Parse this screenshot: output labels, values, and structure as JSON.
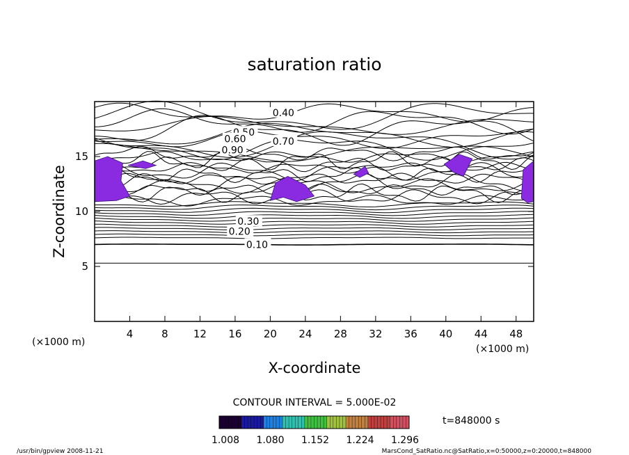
{
  "chart_data": {
    "type": "contour",
    "title": "saturation ratio",
    "xlabel": "X-coordinate",
    "ylabel": "Z-coordinate",
    "x_unit": "(×1000 m)",
    "z_unit": "(×1000 m)",
    "xlim": [
      0,
      50
    ],
    "ylim": [
      0,
      20
    ],
    "x_ticks": [
      4,
      8,
      12,
      16,
      20,
      24,
      28,
      32,
      36,
      40,
      44,
      48
    ],
    "y_ticks": [
      5,
      10,
      15
    ],
    "contour_interval_text": "CONTOUR INTERVAL = 5.000E-02",
    "time_text": "t=848000 s",
    "contour_levels": [
      {
        "label": "0.10",
        "z": 7.0
      },
      {
        "label": "0.20",
        "z": 8.2
      },
      {
        "label": "0.30",
        "z": 9.1
      },
      {
        "label": "0.40",
        "z": 19.0
      },
      {
        "label": "0.50",
        "z": 17.2
      },
      {
        "label": "0.60",
        "z": 16.6
      },
      {
        "label": "0.70",
        "z": 16.4
      },
      {
        "label": "0.90",
        "z": 15.6
      }
    ],
    "colorbar": {
      "ticks": [
        "1.008",
        "1.080",
        "1.152",
        "1.224",
        "1.296"
      ],
      "colors": [
        "#1a0030",
        "#1a1aa0",
        "#2080e0",
        "#30c0b0",
        "#40c040",
        "#a0c040",
        "#c08040",
        "#c04040",
        "#d05060"
      ]
    },
    "supersaturated_color": "#8a2be2"
  },
  "footer": {
    "left_text": "/usr/bin/gpview  2008-11-21",
    "right_text": "MarsCond_SatRatio.nc@SatRatio,x=0:50000,z=0:20000,t=848000"
  }
}
